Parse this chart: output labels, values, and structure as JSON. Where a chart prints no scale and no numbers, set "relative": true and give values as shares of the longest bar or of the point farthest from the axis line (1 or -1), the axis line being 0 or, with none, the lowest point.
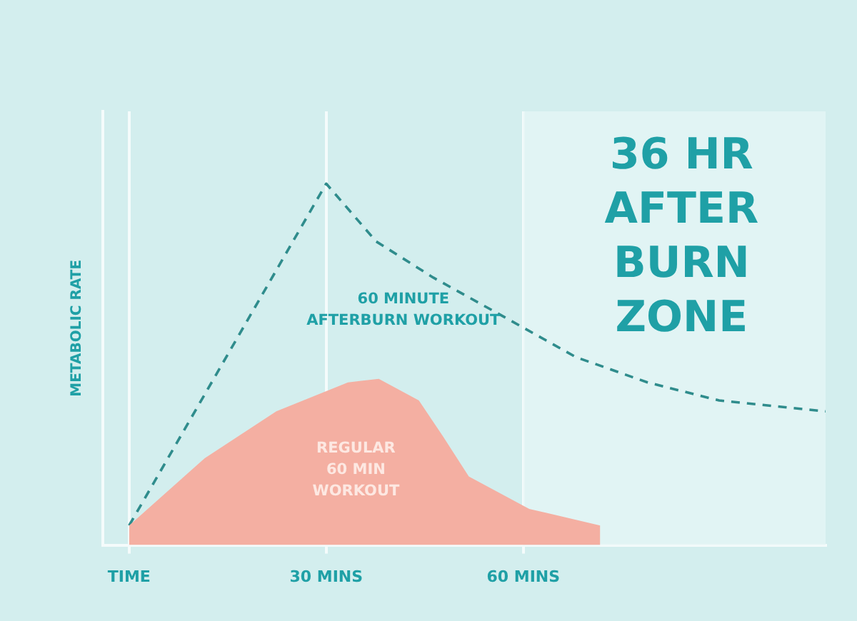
{
  "chart_data": {
    "type": "line",
    "relative": true,
    "ylabel": "METABOLIC RATE",
    "xlim": [
      -4,
      106
    ],
    "xticks": [
      {
        "value": 0,
        "label": "TIME"
      },
      {
        "value": 30,
        "label": "30 MINS"
      },
      {
        "value": 60,
        "label": "60 MINS"
      }
    ],
    "grid": "x",
    "legend": false,
    "series": [
      {
        "name": "REGULAR 60 MIN WORKOUT",
        "type": "area",
        "color": "#f4afa2",
        "x": [
          0,
          11.5,
          22.4,
          33.3,
          38,
          44.1,
          47.8,
          51.7,
          60.9,
          71.7
        ],
        "values": [
          0.054,
          0.24,
          0.37,
          0.45,
          0.46,
          0.4,
          0.3,
          0.19,
          0.1,
          0.054
        ]
      },
      {
        "name": "60 MINUTE AFTERBURN WORKOUT",
        "line_style": "dashed",
        "marker": "none",
        "color": "#2f8c8c",
        "x": [
          0,
          30,
          37.6,
          46.3,
          57.2,
          68,
          78.9,
          89.8,
          106
        ],
        "values": [
          0.054,
          1,
          0.84,
          0.74,
          0.63,
          0.52,
          0.45,
          0.4,
          0.37
        ]
      }
    ],
    "bands": [
      {
        "axis": "x",
        "from": 60,
        "to": 106,
        "label": "36 HR\nAFTER\nBURN\nZONE",
        "color": "#e6f6f6"
      }
    ]
  }
}
